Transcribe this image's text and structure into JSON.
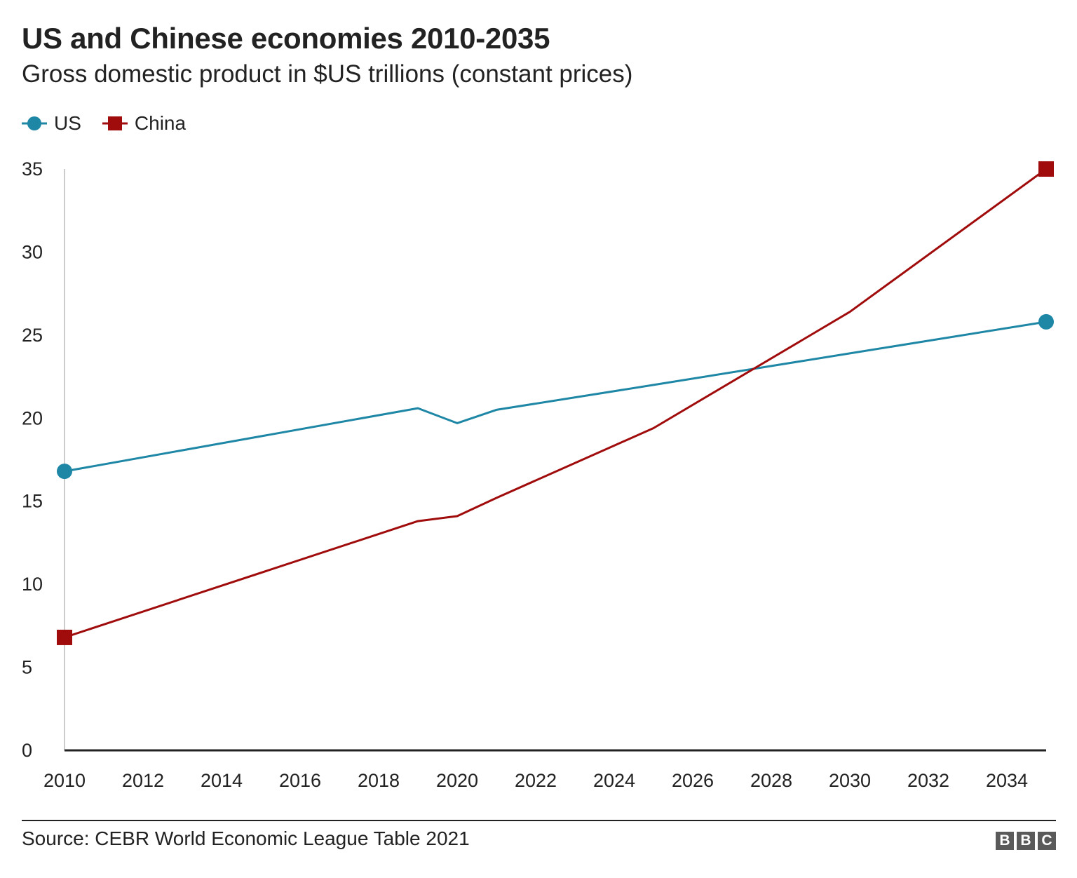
{
  "header": {
    "title": "US and Chinese economies 2010-2035",
    "subtitle": "Gross domestic product in $US trillions (constant prices)"
  },
  "legend": {
    "items": [
      {
        "label": "US",
        "color": "#1f87a6",
        "marker": "circle"
      },
      {
        "label": "China",
        "color": "#a00c0c",
        "marker": "square"
      }
    ]
  },
  "chart_data": {
    "type": "line",
    "title": "US and Chinese economies 2010-2035",
    "subtitle": "Gross domestic product in $US trillions (constant prices)",
    "xlabel": "",
    "ylabel": "",
    "xlim": [
      2010,
      2035
    ],
    "ylim": [
      0,
      35
    ],
    "x_ticks": [
      2010,
      2012,
      2014,
      2016,
      2018,
      2020,
      2022,
      2024,
      2026,
      2028,
      2030,
      2032,
      2034
    ],
    "y_ticks": [
      0,
      5,
      10,
      15,
      20,
      25,
      30,
      35
    ],
    "grid": false,
    "legend_position": "top-left",
    "series": [
      {
        "name": "US",
        "color": "#1f87a6",
        "marker": "circle",
        "x": [
          2010,
          2019,
          2020,
          2021,
          2025,
          2030,
          2035
        ],
        "y": [
          16.8,
          20.6,
          19.7,
          20.5,
          22.0,
          23.9,
          25.8
        ]
      },
      {
        "name": "China",
        "color": "#a00c0c",
        "marker": "square",
        "x": [
          2010,
          2019,
          2020,
          2021,
          2025,
          2030,
          2035
        ],
        "y": [
          6.8,
          13.8,
          14.1,
          15.2,
          19.4,
          26.4,
          35.0
        ]
      }
    ]
  },
  "footer": {
    "source": "Source: CEBR World Economic League Table 2021",
    "logo_letters": [
      "B",
      "B",
      "C"
    ]
  }
}
